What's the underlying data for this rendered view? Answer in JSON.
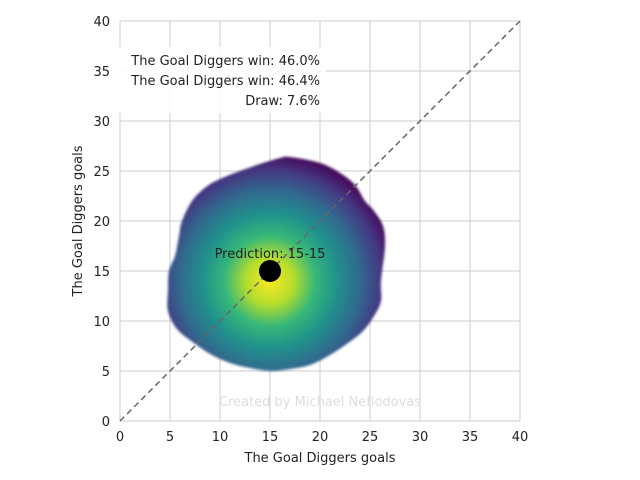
{
  "chart_data": {
    "type": "heatmap",
    "xlabel": "The Goal Diggers goals",
    "ylabel": "The Goal Diggers goals",
    "xlim": [
      0,
      40
    ],
    "ylim": [
      0,
      40
    ],
    "ticks": [
      0,
      5,
      10,
      15,
      20,
      25,
      30,
      35,
      40
    ],
    "grid": true,
    "legend_placement": "top-left",
    "outcome_lines": [
      "The Goal Diggers win: 46.0%",
      "The Goal Diggers win: 46.4%",
      "Draw: 7.6%"
    ],
    "prediction": {
      "x": 15,
      "y": 15,
      "label": "Prediction: 15-15"
    },
    "diagonal": {
      "from": [
        0,
        0
      ],
      "to": [
        40,
        40
      ],
      "style": "dashed"
    },
    "density": {
      "center": [
        15,
        14
      ],
      "boundary": [
        [
          17,
          26.4
        ],
        [
          20,
          25.8
        ],
        [
          22,
          24.8
        ],
        [
          23.5,
          23.6
        ],
        [
          24.5,
          22
        ],
        [
          25.4,
          21
        ],
        [
          26.3,
          19.5
        ],
        [
          26.5,
          17.5
        ],
        [
          26.1,
          14
        ],
        [
          26.1,
          12
        ],
        [
          25.4,
          10.5
        ],
        [
          24.3,
          9
        ],
        [
          22.8,
          7.8
        ],
        [
          21,
          6.6
        ],
        [
          19,
          5.6
        ],
        [
          17,
          5.2
        ],
        [
          15,
          5
        ],
        [
          13,
          5.3
        ],
        [
          11,
          5.8
        ],
        [
          9.2,
          6.6
        ],
        [
          7.4,
          7.8
        ],
        [
          5.7,
          9.2
        ],
        [
          4.8,
          11
        ],
        [
          4.8,
          13
        ],
        [
          4.9,
          15
        ],
        [
          5.5,
          16.5
        ],
        [
          5.9,
          18.5
        ],
        [
          6.2,
          20
        ],
        [
          7.2,
          22
        ],
        [
          8.6,
          23.4
        ],
        [
          10,
          24.2
        ],
        [
          12,
          25
        ],
        [
          14,
          25.7
        ],
        [
          16,
          26.3
        ]
      ],
      "colormap": "viridis"
    },
    "watermark": "Created by Michael Nefiodovas"
  }
}
